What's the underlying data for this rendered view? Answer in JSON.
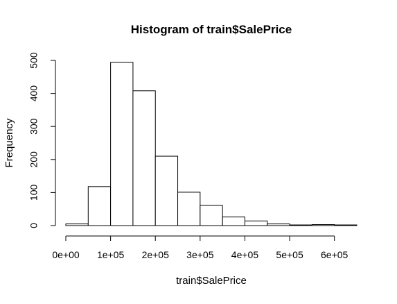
{
  "chart_data": {
    "type": "bar",
    "title": "Histogram of train$SalePrice",
    "xlabel": "train$SalePrice",
    "ylabel": "Frequency",
    "bins": [
      {
        "start": 0,
        "end": 50000,
        "count": 5
      },
      {
        "start": 50000,
        "end": 100000,
        "count": 118
      },
      {
        "start": 100000,
        "end": 150000,
        "count": 494
      },
      {
        "start": 150000,
        "end": 200000,
        "count": 408
      },
      {
        "start": 200000,
        "end": 250000,
        "count": 210
      },
      {
        "start": 250000,
        "end": 300000,
        "count": 101
      },
      {
        "start": 300000,
        "end": 350000,
        "count": 61
      },
      {
        "start": 350000,
        "end": 400000,
        "count": 26
      },
      {
        "start": 400000,
        "end": 450000,
        "count": 14
      },
      {
        "start": 450000,
        "end": 500000,
        "count": 5
      },
      {
        "start": 500000,
        "end": 550000,
        "count": 2
      },
      {
        "start": 550000,
        "end": 600000,
        "count": 3
      },
      {
        "start": 600000,
        "end": 650000,
        "count": 2
      }
    ],
    "xlim": [
      0,
      650000
    ],
    "ylim": [
      0,
      500
    ],
    "x_ticks": [
      {
        "value": 0,
        "label": "0e+00"
      },
      {
        "value": 100000,
        "label": "1e+05"
      },
      {
        "value": 200000,
        "label": "2e+05"
      },
      {
        "value": 300000,
        "label": "3e+05"
      },
      {
        "value": 400000,
        "label": "4e+05"
      },
      {
        "value": 500000,
        "label": "5e+05"
      },
      {
        "value": 600000,
        "label": "6e+05"
      }
    ],
    "y_ticks": [
      {
        "value": 0,
        "label": "0"
      },
      {
        "value": 100,
        "label": "100"
      },
      {
        "value": 200,
        "label": "200"
      },
      {
        "value": 300,
        "label": "300"
      },
      {
        "value": 400,
        "label": "400"
      },
      {
        "value": 500,
        "label": "500"
      }
    ],
    "grid": false,
    "colors": {
      "bar_fill": "#ffffff",
      "bar_stroke": "#000000",
      "axis": "#000000",
      "text": "#000000"
    }
  }
}
